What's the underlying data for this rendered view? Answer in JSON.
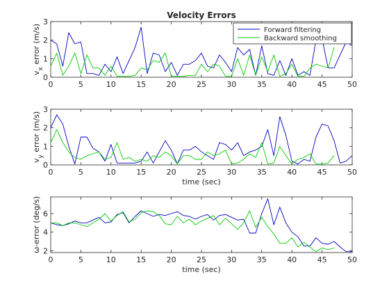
{
  "window": {
    "title": "Velocity Errors"
  },
  "chart_data": [
    {
      "type": "line",
      "title": "Velocity Errors",
      "xlabel": "",
      "ylabel_main": "v",
      "ylabel_sub": "x",
      "ylabel_rest": " error (m/s)",
      "xlim": [
        0,
        50
      ],
      "ylim": [
        0,
        3
      ],
      "xticks": [
        "0",
        "5",
        "10",
        "15",
        "20",
        "25",
        "30",
        "35",
        "40",
        "45",
        "50"
      ],
      "yticks": [
        "0",
        "1",
        "2",
        "3"
      ],
      "legend": {
        "placement": "top-right",
        "entries": [
          "Forward filtering",
          "Backward smoothing"
        ]
      },
      "series": [
        {
          "name": "Forward filtering",
          "color": "#0000bf",
          "x": [
            0,
            1,
            2,
            3,
            4,
            5,
            6,
            7,
            8,
            9,
            10,
            11,
            12,
            13,
            14,
            15,
            16,
            17,
            18,
            19,
            20,
            21,
            22,
            23,
            24,
            25,
            26,
            27,
            28,
            29,
            30,
            31,
            32,
            33,
            34,
            35,
            36,
            37,
            38,
            39,
            40,
            41,
            42,
            43,
            44,
            45,
            46,
            47,
            48,
            49,
            50
          ],
          "y": [
            2.0,
            1.8,
            0.6,
            2.4,
            1.8,
            1.9,
            0.2,
            0.2,
            0.1,
            0.7,
            0.3,
            1.1,
            0.2,
            0.9,
            1.6,
            2.7,
            0.2,
            1.3,
            1.2,
            0.3,
            0.8,
            0.1,
            0.7,
            0.7,
            0.9,
            1.3,
            0.6,
            0.5,
            1.2,
            0.8,
            0.3,
            1.6,
            1.2,
            1.5,
            0.1,
            1.7,
            0.2,
            0.1,
            0.9,
            0.1,
            1.0,
            0.1,
            0.3,
            0.1,
            2.0,
            2.1,
            0.5,
            0.5,
            1.2,
            1.9,
            1.7
          ]
        },
        {
          "name": "Backward smoothing",
          "color": "#00cc00",
          "x": [
            0,
            1,
            2,
            3,
            4,
            5,
            6,
            7,
            8,
            9,
            10,
            11,
            12,
            13,
            14,
            15,
            16,
            17,
            18,
            19,
            20,
            21,
            22,
            23,
            24,
            25,
            26,
            27,
            28,
            29,
            30,
            31,
            32,
            33,
            34,
            35,
            36,
            37,
            38,
            39,
            40,
            41,
            42,
            43,
            44,
            45,
            46,
            47
          ],
          "y": [
            0.6,
            1.3,
            0.1,
            0.6,
            1.3,
            0.2,
            1.2,
            0.5,
            0.5,
            0.1,
            0.6,
            0.05,
            0.05,
            0.05,
            0.1,
            0.5,
            0.4,
            0.9,
            0.8,
            1.3,
            0.05,
            0.05,
            0.05,
            0.1,
            0.1,
            0.7,
            0.3,
            0.7,
            0.6,
            0.05,
            0.05,
            1.0,
            0.1,
            1.2,
            0.1,
            1.1,
            0.3,
            1.2,
            0.05,
            0.2,
            0.7,
            0.05,
            0.05,
            0.5,
            0.7,
            0.6,
            0.5,
            1.6
          ]
        }
      ]
    },
    {
      "type": "line",
      "title": "",
      "xlabel": "time (sec)",
      "ylabel_main": "v",
      "ylabel_sub": "y",
      "ylabel_rest": " error (m/s)",
      "xlim": [
        0,
        50
      ],
      "ylim": [
        0,
        3
      ],
      "xticks": [
        "0",
        "5",
        "10",
        "15",
        "20",
        "25",
        "30",
        "35",
        "40",
        "45",
        "50"
      ],
      "yticks": [
        "0",
        "1",
        "2",
        "3"
      ],
      "series": [
        {
          "name": "Forward filtering",
          "color": "#0000bf",
          "x": [
            0,
            1,
            2,
            3,
            4,
            5,
            6,
            7,
            8,
            9,
            10,
            11,
            12,
            13,
            14,
            15,
            16,
            17,
            18,
            19,
            20,
            21,
            22,
            23,
            24,
            25,
            26,
            27,
            28,
            29,
            30,
            31,
            32,
            33,
            34,
            35,
            36,
            37,
            38,
            39,
            40,
            41,
            42,
            43,
            44,
            45,
            46,
            47,
            48,
            49,
            50
          ],
          "y": [
            2.0,
            2.7,
            2.2,
            1.0,
            0.05,
            1.5,
            1.5,
            0.9,
            0.7,
            0.2,
            1.1,
            0.1,
            0.1,
            0.1,
            0.1,
            0.2,
            0.7,
            0.1,
            0.7,
            1.3,
            0.8,
            0.05,
            0.8,
            0.8,
            1.0,
            0.7,
            0.5,
            0.3,
            1.2,
            1.1,
            0.8,
            1.2,
            0.5,
            0.7,
            0.8,
            1.0,
            1.9,
            0.5,
            2.6,
            1.6,
            0.2,
            0.05,
            0.3,
            0.2,
            1.5,
            2.2,
            2.1,
            1.3,
            0.1,
            0.2,
            0.5
          ]
        },
        {
          "name": "Backward smoothing",
          "color": "#00cc00",
          "x": [
            0,
            1,
            2,
            3,
            4,
            5,
            6,
            7,
            8,
            9,
            10,
            11,
            12,
            13,
            14,
            15,
            16,
            17,
            18,
            19,
            20,
            21,
            22,
            23,
            24,
            25,
            26,
            27,
            28,
            29,
            30,
            31,
            32,
            33,
            34,
            35,
            36,
            37,
            38,
            39,
            40,
            41,
            42,
            43,
            44,
            45,
            46,
            47
          ],
          "y": [
            1.2,
            1.9,
            1.2,
            0.7,
            0.4,
            0.3,
            0.5,
            0.6,
            0.7,
            0.3,
            0.4,
            1.2,
            0.3,
            0.4,
            0.2,
            0.3,
            0.2,
            0.5,
            0.4,
            0.7,
            0.5,
            0.05,
            0.5,
            0.5,
            0.3,
            0.3,
            0.7,
            0.5,
            0.6,
            0.8,
            0.05,
            0.1,
            0.3,
            0.6,
            0.4,
            1.2,
            0.05,
            0.1,
            1.0,
            0.5,
            0.05,
            0.3,
            0.4,
            0.6,
            0.05,
            0.05,
            0.1,
            0.5
          ]
        }
      ]
    },
    {
      "type": "line",
      "title": "",
      "xlabel": "time (sec)",
      "ylabel_main": "ω-error (deg/s)",
      "ylabel_sub": "",
      "ylabel_rest": "",
      "xlim": [
        0,
        50
      ],
      "ylim": [
        1.8,
        7.8
      ],
      "xticks": [
        "0",
        "5",
        "10",
        "15",
        "20",
        "25",
        "30",
        "35",
        "40",
        "45",
        "50"
      ],
      "yticks": [
        "2",
        "4",
        "6"
      ],
      "series": [
        {
          "name": "Forward filtering",
          "color": "#0000bf",
          "x": [
            0,
            1,
            2,
            3,
            4,
            5,
            6,
            7,
            8,
            9,
            10,
            11,
            12,
            13,
            14,
            15,
            16,
            17,
            18,
            19,
            20,
            21,
            22,
            23,
            24,
            25,
            26,
            27,
            28,
            29,
            30,
            31,
            32,
            33,
            34,
            35,
            36,
            37,
            38,
            39,
            40,
            41,
            42,
            43,
            44,
            45,
            46,
            47,
            48,
            49,
            50
          ],
          "y": [
            5.0,
            4.8,
            4.7,
            4.9,
            5.2,
            5.0,
            5.0,
            5.3,
            5.6,
            5.0,
            5.1,
            5.9,
            6.1,
            5.0,
            5.7,
            6.3,
            6.0,
            5.7,
            5.9,
            5.8,
            6.0,
            6.2,
            5.8,
            5.7,
            5.4,
            5.7,
            5.9,
            5.3,
            5.8,
            5.9,
            5.6,
            5.3,
            5.4,
            3.9,
            3.9,
            6.0,
            7.6,
            4.8,
            6.7,
            5.0,
            4.0,
            3.5,
            2.5,
            2.5,
            3.4,
            2.8,
            2.7,
            3.0,
            2.4,
            1.9,
            1.9
          ]
        },
        {
          "name": "Backward smoothing",
          "color": "#00cc00",
          "x": [
            0,
            1,
            2,
            3,
            4,
            5,
            6,
            7,
            8,
            9,
            10,
            11,
            12,
            13,
            14,
            15,
            16,
            17,
            18,
            19,
            20,
            21,
            22,
            23,
            24,
            25,
            26,
            27,
            28,
            29,
            30,
            31,
            32,
            33,
            34,
            35,
            36,
            37,
            38,
            39,
            40,
            41,
            42,
            43,
            44,
            45,
            46,
            47
          ],
          "y": [
            5.0,
            5.0,
            4.7,
            5.0,
            5.0,
            4.8,
            4.6,
            5.0,
            5.4,
            6.0,
            5.2,
            5.8,
            6.2,
            5.1,
            5.4,
            6.1,
            6.3,
            6.2,
            5.8,
            4.9,
            4.8,
            5.7,
            5.0,
            5.4,
            4.8,
            5.2,
            5.5,
            5.8,
            4.8,
            5.5,
            4.9,
            4.3,
            5.0,
            6.3,
            4.5,
            5.6,
            4.6,
            3.8,
            2.8,
            2.8,
            3.4,
            2.4,
            2.9,
            2.4,
            1.9,
            2.3,
            2.1,
            2.3
          ]
        }
      ]
    }
  ]
}
